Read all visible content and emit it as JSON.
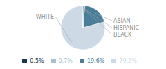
{
  "chart_data": {
    "type": "pie",
    "categories": [
      "WHITE",
      "ASIAN",
      "HISPANIC",
      "BLACK"
    ],
    "values": [
      79.2,
      19.6,
      0.7,
      0.5
    ],
    "value_labels": [
      "79.2%",
      "19.6%",
      "0.7%",
      "0.5%"
    ],
    "colors": [
      "#cdd9e5",
      "#4a7d9a",
      "#a8bfcf",
      "#1a3a4a"
    ],
    "legend": "bottom"
  }
}
